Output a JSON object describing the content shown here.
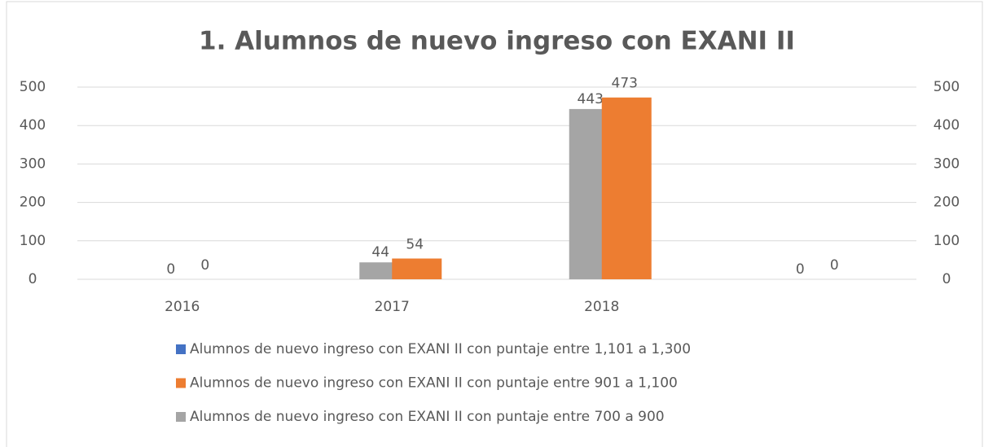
{
  "chart_data": {
    "type": "bar",
    "title": "1. Alumnos de nuevo ingreso con EXANI II",
    "categories": [
      "2016",
      "2017",
      "2018",
      null
    ],
    "series": [
      {
        "name": "Alumnos de nuevo ingreso con EXANI II con puntaje entre 1,101 a 1,300",
        "color": "#4472c4",
        "values": [
          null,
          null,
          null,
          null
        ]
      },
      {
        "name": "Alumnos de nuevo ingreso con EXANI II con puntaje entre 901 a 1,100",
        "color": "#ed7d31",
        "values": [
          0,
          54,
          473,
          0
        ],
        "axis": "y2"
      },
      {
        "name": "Alumnos de nuevo ingreso con EXANI II con puntaje entre 700 a 900",
        "color": "#a5a5a5",
        "values": [
          0,
          44,
          443,
          0
        ]
      }
    ],
    "ylim": [
      0,
      500
    ],
    "yticks": [
      0,
      100,
      200,
      300,
      400,
      500
    ],
    "y2lim": [
      0,
      500
    ],
    "y2ticks": [
      0,
      100,
      200,
      300,
      400,
      500
    ],
    "grid": true,
    "legend": "bottom"
  }
}
